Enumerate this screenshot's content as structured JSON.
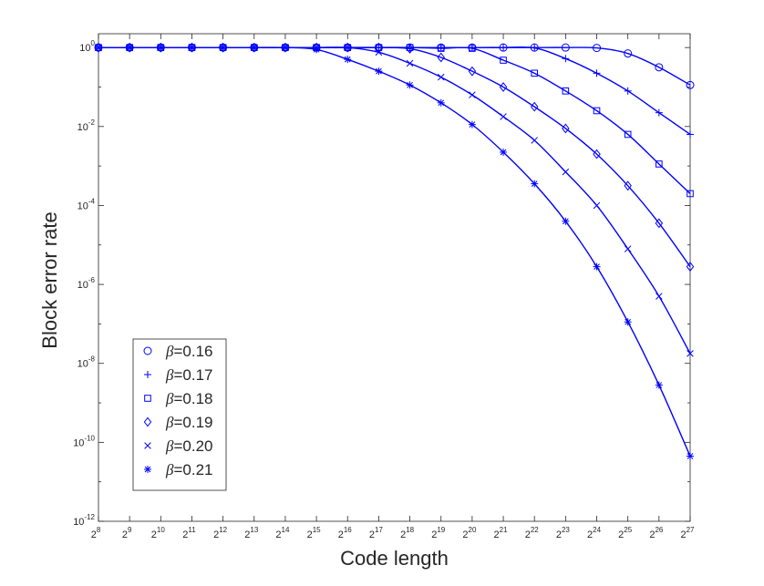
{
  "chart_data": {
    "type": "line",
    "title": "",
    "xlabel": "Code length",
    "ylabel": "Block error rate",
    "x_tick_base": "2",
    "x_exponents": [
      8,
      9,
      10,
      11,
      12,
      13,
      14,
      15,
      16,
      17,
      18,
      19,
      20,
      21,
      22,
      23,
      24,
      25,
      26,
      27
    ],
    "xlim_exponent": [
      8,
      27
    ],
    "yscale": "log",
    "y_tick_base": "10",
    "y_tick_exponents": [
      0,
      -2,
      -4,
      -6,
      -8,
      -10,
      -12
    ],
    "ylim_exponent": [
      -12,
      0.35
    ],
    "grid": false,
    "legend_position": "bottom-left",
    "line_color": "#0000ff",
    "series": [
      {
        "name": "0.16",
        "marker": "circle",
        "x_exponents": [
          8,
          9,
          10,
          11,
          12,
          13,
          14,
          15,
          16,
          17,
          18,
          19,
          20,
          21,
          22,
          23,
          24,
          25,
          26,
          27
        ],
        "log10_values": [
          0,
          0,
          0,
          0,
          0,
          0,
          0,
          0,
          0,
          0,
          0,
          0,
          0,
          0,
          0,
          0,
          -0.01,
          -0.15,
          -0.5,
          -0.95
        ]
      },
      {
        "name": "0.17",
        "marker": "plus",
        "x_exponents": [
          8,
          9,
          10,
          11,
          12,
          13,
          14,
          15,
          16,
          17,
          18,
          19,
          20,
          21,
          22,
          23,
          24,
          25,
          26,
          27
        ],
        "log10_values": [
          0,
          0,
          0,
          0,
          0,
          0,
          0,
          0,
          0,
          0,
          0,
          0,
          0,
          0,
          -0.01,
          -0.28,
          -0.65,
          -1.1,
          -1.65,
          -2.2
        ]
      },
      {
        "name": "0.18",
        "marker": "square",
        "x_exponents": [
          8,
          9,
          10,
          11,
          12,
          13,
          14,
          15,
          16,
          17,
          18,
          19,
          20,
          21,
          22,
          23,
          24,
          25,
          26,
          27
        ],
        "log10_values": [
          0,
          0,
          0,
          0,
          0,
          0,
          0,
          0,
          0,
          0,
          0,
          -0.02,
          -0.02,
          -0.32,
          -0.65,
          -1.1,
          -1.6,
          -2.2,
          -2.95,
          -3.7
        ]
      },
      {
        "name": "0.19",
        "marker": "diamond",
        "x_exponents": [
          8,
          9,
          10,
          11,
          12,
          13,
          14,
          15,
          16,
          17,
          18,
          19,
          20,
          21,
          22,
          23,
          24,
          25,
          26,
          27
        ],
        "log10_values": [
          0,
          0,
          0,
          0,
          0,
          0,
          0,
          0,
          0,
          0,
          -0.03,
          -0.25,
          -0.6,
          -1.0,
          -1.5,
          -2.05,
          -2.7,
          -3.5,
          -4.45,
          -5.55
        ]
      },
      {
        "name": "0.20",
        "marker": "x",
        "x_exponents": [
          8,
          9,
          10,
          11,
          12,
          13,
          14,
          15,
          16,
          17,
          18,
          19,
          20,
          21,
          22,
          23,
          24,
          25,
          26,
          27
        ],
        "log10_values": [
          0,
          0,
          0,
          0,
          0,
          0,
          0,
          0,
          0,
          -0.12,
          -0.4,
          -0.75,
          -1.2,
          -1.75,
          -2.35,
          -3.15,
          -4.0,
          -5.1,
          -6.3,
          -7.75
        ]
      },
      {
        "name": "0.21",
        "marker": "asterisk",
        "x_exponents": [
          8,
          9,
          10,
          11,
          12,
          13,
          14,
          15,
          16,
          17,
          18,
          19,
          20,
          21,
          22,
          23,
          24,
          25,
          26,
          27
        ],
        "log10_values": [
          0,
          0,
          0,
          0,
          0,
          0,
          0,
          -0.05,
          -0.3,
          -0.6,
          -0.95,
          -1.4,
          -1.95,
          -2.65,
          -3.45,
          -4.4,
          -5.55,
          -6.95,
          -8.55,
          -10.35
        ]
      }
    ],
    "legend": {
      "symbol": "β",
      "equals": "="
    }
  }
}
